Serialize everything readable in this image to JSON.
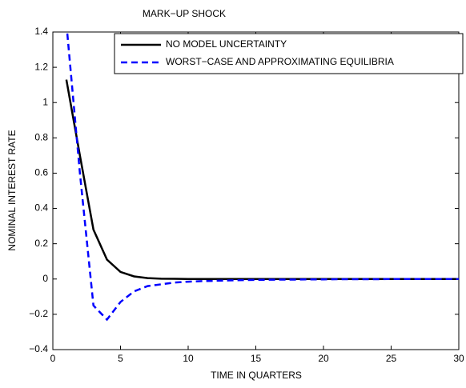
{
  "chart_data": {
    "type": "line",
    "title": "MARK−UP SHOCK",
    "xlabel": "TIME IN QUARTERS",
    "ylabel": "NOMINAL INTEREST RATE",
    "x": [
      1,
      2,
      3,
      4,
      5,
      6,
      7,
      8,
      9,
      10,
      11,
      12,
      13,
      14,
      15,
      16,
      17,
      18,
      19,
      20,
      21,
      22,
      23,
      24,
      25,
      26,
      27,
      28,
      29,
      30
    ],
    "series": [
      {
        "name": "NO MODEL UNCERTAINTY",
        "color": "#000000",
        "dash": false,
        "values": [
          1.13,
          0.7,
          0.28,
          0.11,
          0.04,
          0.015,
          0.005,
          0.002,
          0.001,
          0,
          0,
          0,
          0,
          0,
          0,
          0,
          0,
          0,
          0,
          0,
          0,
          0,
          0,
          0,
          0,
          0,
          0,
          0,
          0,
          0
        ]
      },
      {
        "name": "WORST−CASE AND APPROXIMATING EQUILIBRIA",
        "color": "#0000ff",
        "dash": true,
        "values": [
          1.45,
          0.6,
          -0.15,
          -0.23,
          -0.13,
          -0.07,
          -0.04,
          -0.03,
          -0.02,
          -0.015,
          -0.012,
          -0.01,
          -0.008,
          -0.006,
          -0.005,
          -0.004,
          -0.003,
          -0.003,
          -0.002,
          -0.002,
          -0.001,
          -0.001,
          -0.001,
          -0.001,
          0,
          0,
          0,
          0,
          0,
          0
        ]
      }
    ],
    "xlim": [
      0,
      30
    ],
    "ylim": [
      -0.4,
      1.4
    ],
    "xticks": [
      0,
      5,
      10,
      15,
      20,
      25,
      30
    ],
    "yticks": [
      {
        "value": -0.4,
        "label": "−0.4"
      },
      {
        "value": -0.2,
        "label": "−0.2"
      },
      0,
      0.2,
      0.4,
      0.6,
      0.8,
      1,
      1.2,
      1.4
    ],
    "legend": "upper right"
  }
}
